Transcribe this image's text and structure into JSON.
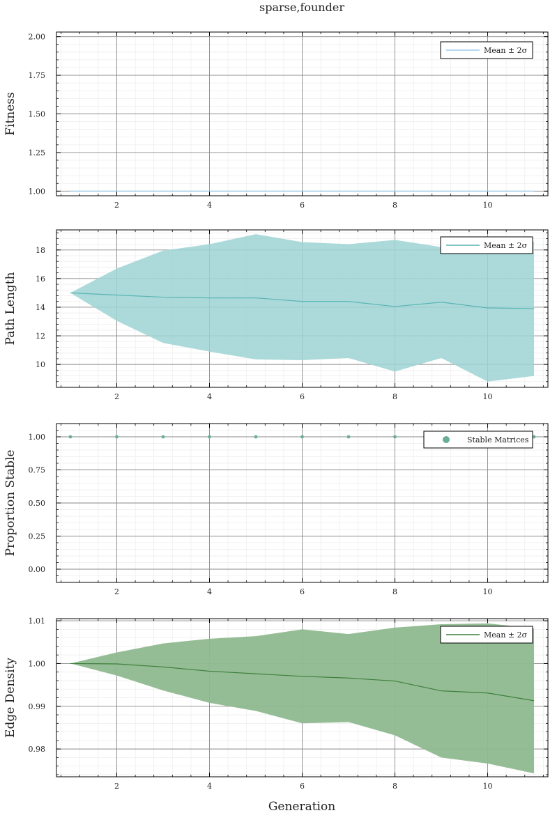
{
  "figure": {
    "title": "sparse,founder",
    "xlabel": "Generation"
  },
  "chart_data": [
    {
      "type": "line",
      "name": "fitness",
      "ylabel": "Fitness",
      "xlim": [
        0.7,
        11.3
      ],
      "ylim": [
        0.97,
        2.03
      ],
      "xticks": [
        2,
        4,
        6,
        8,
        10
      ],
      "yticks": [
        1.0,
        1.25,
        1.5,
        1.75,
        2.0
      ],
      "ytick_labels": [
        "1.00",
        "1.25",
        "1.50",
        "1.75",
        "2.00"
      ],
      "grid": true,
      "legend": {
        "label": "Mean ± 2σ",
        "marker": "line",
        "placement": "top-right"
      },
      "color": "#9fcbe8",
      "band_opacity": 0.6,
      "x": [
        1,
        2,
        3,
        4,
        5,
        6,
        7,
        8,
        9,
        10,
        11
      ],
      "mean": [
        1,
        1,
        1,
        1,
        1,
        1,
        1,
        1,
        1,
        1,
        1
      ],
      "lower": [
        1,
        1,
        1,
        1,
        1,
        1,
        1,
        1,
        1,
        1,
        1
      ],
      "upper": [
        1,
        1,
        1,
        1,
        1,
        1,
        1,
        1,
        1,
        1,
        1
      ]
    },
    {
      "type": "area",
      "name": "path-length",
      "ylabel": "Path Length",
      "xlim": [
        0.7,
        11.3
      ],
      "ylim": [
        8.4,
        19.4
      ],
      "xticks": [
        2,
        4,
        6,
        8,
        10
      ],
      "yticks": [
        10,
        12,
        14,
        16,
        18
      ],
      "ytick_labels": [
        "10",
        "12",
        "14",
        "16",
        "18"
      ],
      "grid": true,
      "legend": {
        "label": "Mean ± 2σ",
        "marker": "line",
        "placement": "top-right"
      },
      "color": "#5ab4b4",
      "band_color": "#9ed4d4",
      "band_opacity": 0.85,
      "x": [
        1,
        2,
        3,
        4,
        5,
        6,
        7,
        8,
        9,
        10,
        11
      ],
      "mean": [
        15.0,
        14.85,
        14.7,
        14.65,
        14.65,
        14.4,
        14.4,
        14.05,
        14.35,
        13.95,
        13.9
      ],
      "lower": [
        15.0,
        13.05,
        11.5,
        10.9,
        10.35,
        10.3,
        10.45,
        9.5,
        10.45,
        8.8,
        9.2
      ],
      "upper": [
        15.0,
        16.7,
        17.95,
        18.4,
        19.1,
        18.55,
        18.4,
        18.7,
        18.2,
        18.0,
        18.6
      ]
    },
    {
      "type": "scatter",
      "name": "proportion-stable",
      "ylabel": "Proportion Stable",
      "xlim": [
        0.7,
        11.3
      ],
      "ylim": [
        -0.1,
        1.1
      ],
      "xticks": [
        2,
        4,
        6,
        8,
        10
      ],
      "yticks": [
        0.0,
        0.25,
        0.5,
        0.75,
        1.0
      ],
      "ytick_labels": [
        "0.00",
        "0.25",
        "0.50",
        "0.75",
        "1.00"
      ],
      "grid": true,
      "legend": {
        "label": "Stable Matrices",
        "marker": "dot",
        "placement": "top-right"
      },
      "color": "#6aaf94",
      "x": [
        1,
        2,
        3,
        4,
        5,
        6,
        7,
        8,
        9,
        10,
        11
      ],
      "values": [
        1,
        1,
        1,
        1,
        1,
        1,
        1,
        1,
        1,
        1,
        1
      ]
    },
    {
      "type": "area",
      "name": "edge-density",
      "ylabel": "Edge Density",
      "xlim": [
        0.7,
        11.3
      ],
      "ylim": [
        0.9735,
        1.0105
      ],
      "xticks": [
        2,
        4,
        6,
        8,
        10
      ],
      "yticks": [
        0.98,
        0.99,
        1.0,
        1.01
      ],
      "ytick_labels": [
        "0.98",
        "0.99",
        "1.00",
        "1.01"
      ],
      "grid": true,
      "legend": {
        "label": "Mean ± 2σ",
        "marker": "line",
        "placement": "top-right"
      },
      "color": "#3d7f3d",
      "band_color": "#8fb98f",
      "band_opacity": 0.95,
      "x": [
        1,
        2,
        3,
        4,
        5,
        6,
        7,
        8,
        9,
        10,
        11
      ],
      "mean": [
        1.0,
        0.9999,
        0.9992,
        0.9982,
        0.9976,
        0.997,
        0.9966,
        0.9959,
        0.9936,
        0.9931,
        0.9913
      ],
      "lower": [
        1.0,
        0.9972,
        0.9937,
        0.9908,
        0.9889,
        0.986,
        0.9863,
        0.9832,
        0.978,
        0.9766,
        0.9743
      ],
      "upper": [
        1.0,
        1.0026,
        1.0047,
        1.0058,
        1.0064,
        1.008,
        1.0069,
        1.0084,
        1.0092,
        1.0094,
        1.0082
      ]
    }
  ]
}
